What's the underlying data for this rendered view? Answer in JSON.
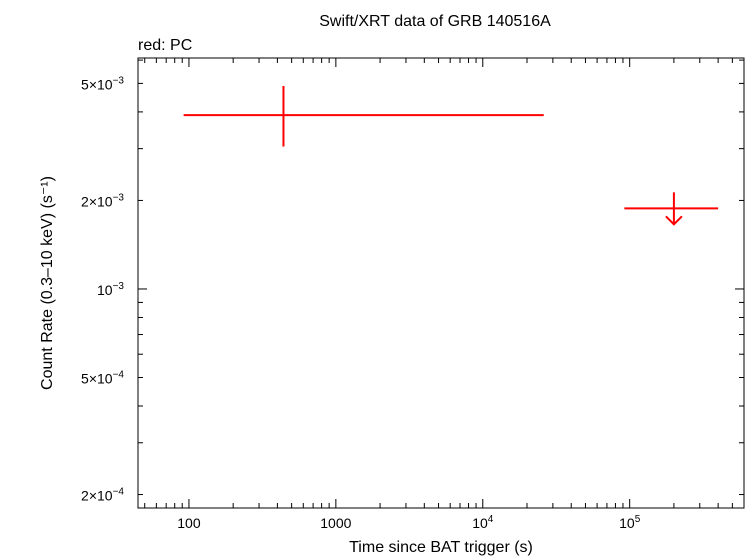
{
  "chart_data": {
    "type": "scatter",
    "title": "Swift/XRT data of GRB 140516A",
    "subtitle": "red: PC",
    "xlabel": "Time since BAT trigger (s)",
    "ylabel": "Count Rate (0.3–10 keV) (s⁻¹)",
    "xscale": "log",
    "yscale": "log",
    "xlim": [
      45,
      600000
    ],
    "ylim": [
      0.00018,
      0.0061
    ],
    "x_tick_labels": [
      {
        "value": 100,
        "text": "100"
      },
      {
        "value": 1000,
        "text": "1000"
      },
      {
        "value": 10000,
        "base": "10",
        "exp": "4"
      },
      {
        "value": 100000,
        "base": "10",
        "exp": "5"
      }
    ],
    "y_tick_labels": [
      {
        "value": 0.005,
        "mant": "5×10",
        "exp": "−3"
      },
      {
        "value": 0.002,
        "mant": "2×10",
        "exp": "−3"
      },
      {
        "value": 0.001,
        "mant": "10",
        "exp": "−3"
      },
      {
        "value": 0.0005,
        "mant": "5×10",
        "exp": "−4"
      },
      {
        "value": 0.0002,
        "mant": "2×10",
        "exp": "−4"
      }
    ],
    "series": [
      {
        "name": "PC",
        "color": "#ff0000",
        "points": [
          {
            "x": 440,
            "x_lo": 92,
            "x_hi": 26000,
            "y": 0.0039,
            "y_lo": 0.00305,
            "y_hi": 0.0049,
            "upper_limit": false
          },
          {
            "x": 200000,
            "x_lo": 92000,
            "x_hi": 400000,
            "y": 0.00188,
            "upper_limit": true
          }
        ]
      }
    ]
  }
}
